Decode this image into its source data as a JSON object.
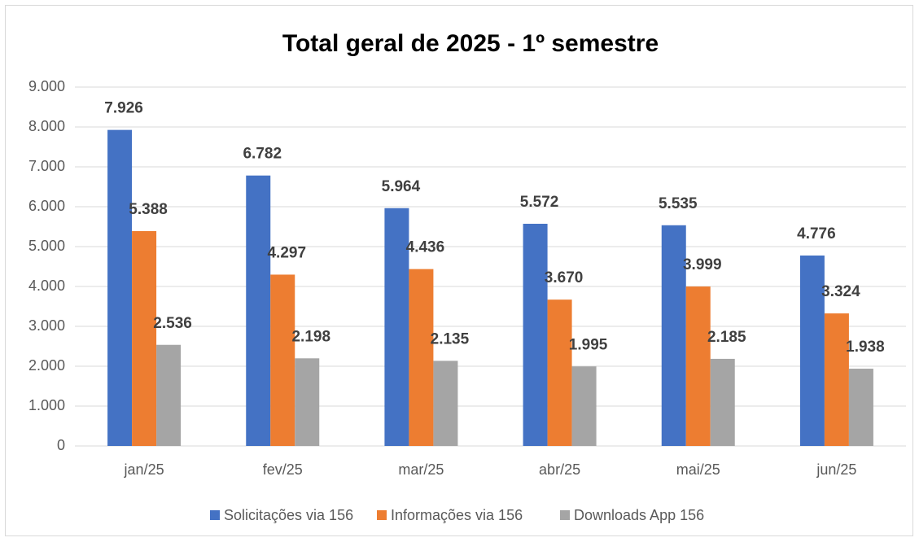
{
  "chart_data": {
    "type": "bar",
    "title": "Total geral de 2025 - 1º semestre",
    "categories": [
      "jan/25",
      "fev/25",
      "mar/25",
      "abr/25",
      "mai/25",
      "jun/25"
    ],
    "series": [
      {
        "name": "Solicitações via 156",
        "color": "#4472c4",
        "values": [
          7926,
          6782,
          5964,
          5572,
          5535,
          4776
        ],
        "value_labels": [
          "7.926",
          "6.782",
          "5.964",
          "5.572",
          "5.535",
          "4.776"
        ]
      },
      {
        "name": "Informações via 156",
        "color": "#ed7d31",
        "values": [
          5388,
          4297,
          4436,
          3670,
          3999,
          3324
        ],
        "value_labels": [
          "5.388",
          "4.297",
          "4.436",
          "3.670",
          "3.999",
          "3.324"
        ]
      },
      {
        "name": "Downloads App 156",
        "color": "#a5a5a5",
        "values": [
          2536,
          2198,
          2135,
          1995,
          2185,
          1938
        ],
        "value_labels": [
          "2.536",
          "2.198",
          "2.135",
          "1.995",
          "2.185",
          "1.938"
        ]
      }
    ],
    "ylim": [
      0,
      9000
    ],
    "yticks": [
      0,
      {
        "value": 1000,
        "label": "1.000"
      },
      {
        "value": 2000,
        "label": "2.000"
      },
      {
        "value": 3000,
        "label": "3.000"
      },
      {
        "value": 4000,
        "label": "4.000"
      },
      {
        "value": 5000,
        "label": "5.000"
      },
      {
        "value": 6000,
        "label": "6.000"
      },
      {
        "value": 7000,
        "label": "7.000"
      },
      {
        "value": 8000,
        "label": "8.000"
      },
      {
        "value": 9000,
        "label": "9.000"
      }
    ],
    "grid": true,
    "legend": "bottom"
  }
}
